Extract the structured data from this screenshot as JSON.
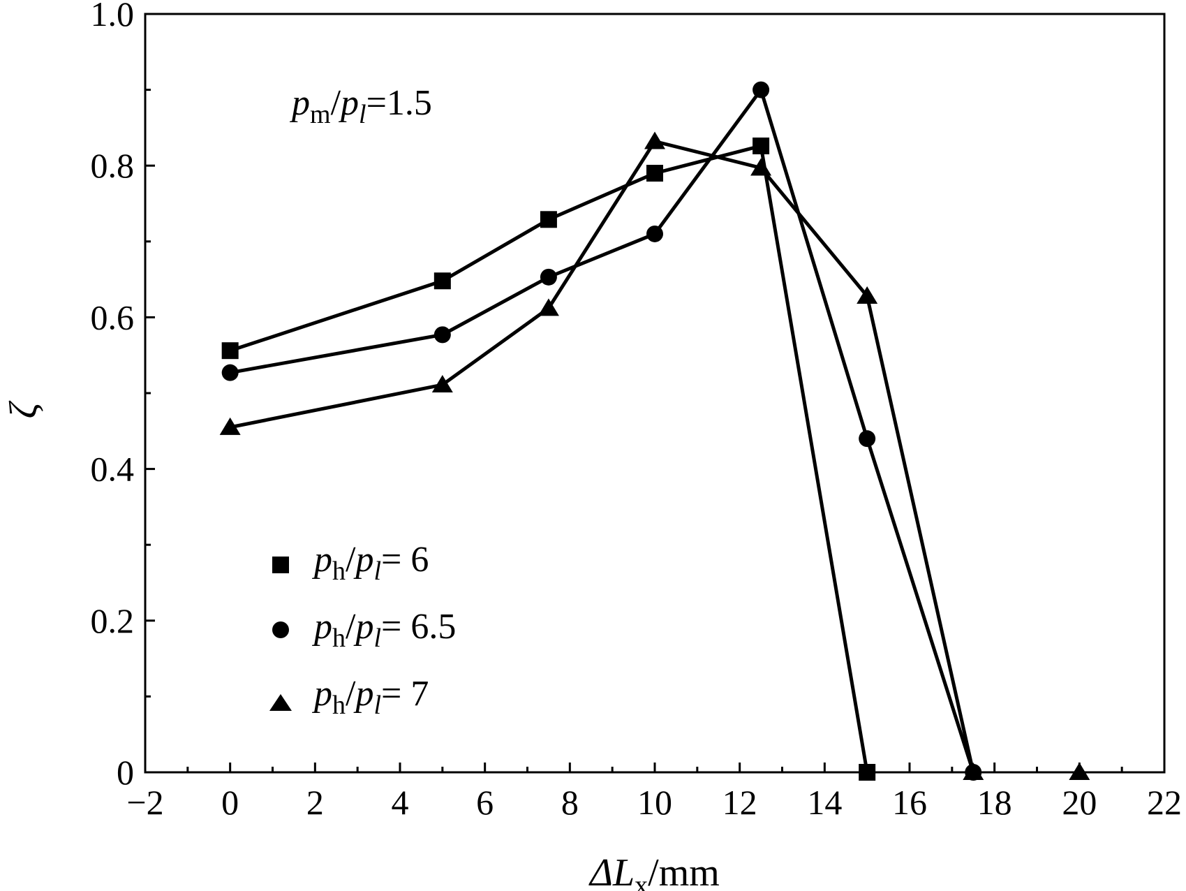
{
  "chart_data": {
    "type": "line",
    "xlabel": {
      "prefix": "ΔL",
      "sub": "x",
      "suffix": "/mm"
    },
    "ylabel": "ζ",
    "xlim": [
      -2,
      22
    ],
    "ylim": [
      0,
      1.0
    ],
    "xticks": [
      -2,
      0,
      2,
      4,
      6,
      8,
      10,
      12,
      14,
      16,
      18,
      20,
      22
    ],
    "xtick_labels": [
      "−2",
      "0",
      "2",
      "4",
      "6",
      "8",
      "10",
      "12",
      "14",
      "16",
      "18",
      "20",
      "22"
    ],
    "yticks": [
      0,
      0.2,
      0.4,
      0.6,
      0.8,
      1.0
    ],
    "ytick_labels": [
      "0",
      "0.2",
      "0.4",
      "0.6",
      "0.8",
      "1.0"
    ],
    "grid": false,
    "legend_position": "bottom-left",
    "annotation": {
      "p1": "p",
      "sub1": "m",
      "slash": "/",
      "p2": "p",
      "sub2": "l",
      "eq": "=1.5"
    },
    "series": [
      {
        "legend": {
          "p1": "p",
          "sub1": "h",
          "slash": "/",
          "p2": "p",
          "sub2": "l",
          "eq": "= 6"
        },
        "marker": "square",
        "x": [
          0,
          5,
          7.5,
          10,
          12.5,
          15
        ],
        "y": [
          0.556,
          0.648,
          0.729,
          0.79,
          0.826,
          0
        ]
      },
      {
        "legend": {
          "p1": "p",
          "sub1": "h",
          "slash": "/",
          "p2": "p",
          "sub2": "l",
          "eq": "= 6.5"
        },
        "marker": "circle",
        "x": [
          0,
          5,
          7.5,
          10,
          12.5,
          15,
          17.5
        ],
        "y": [
          0.527,
          0.577,
          0.653,
          0.71,
          0.9,
          0.44,
          0
        ]
      },
      {
        "legend": {
          "p1": "p",
          "sub1": "h",
          "slash": "/",
          "p2": "p",
          "sub2": "l",
          "eq": "= 7"
        },
        "marker": "triangle",
        "x": [
          0,
          5,
          7.5,
          10,
          12.5,
          15,
          17.5
        ],
        "y": [
          0.455,
          0.511,
          0.612,
          0.832,
          0.797,
          0.628,
          0
        ]
      },
      {
        "legend": null,
        "marker": "triangle",
        "x": [
          20
        ],
        "y": [
          0
        ]
      }
    ]
  }
}
